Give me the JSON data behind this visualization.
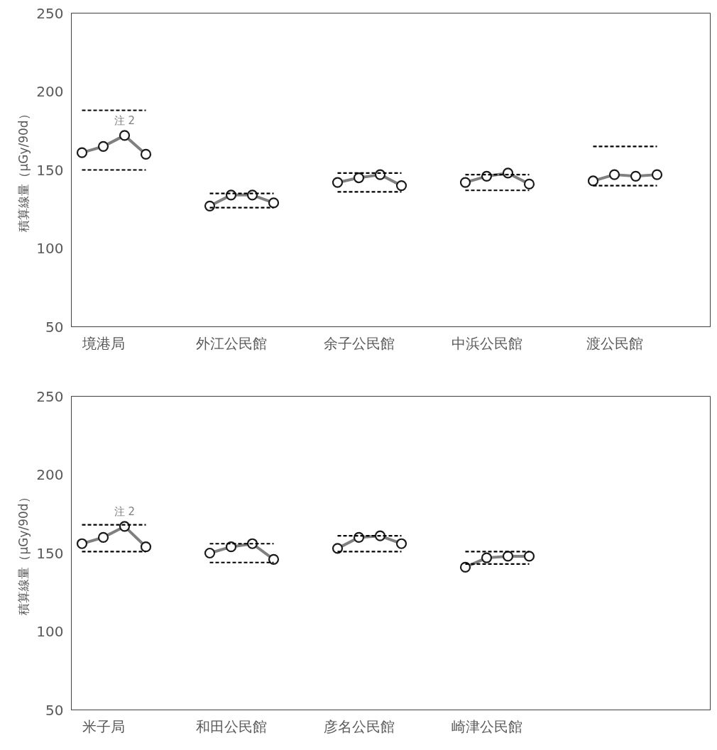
{
  "chart_data": [
    {
      "type": "line",
      "ylabel": "積算線量（μGy/90d）",
      "ylim": [
        50,
        250
      ],
      "yticks": [
        50,
        100,
        150,
        200,
        250
      ],
      "grid": false,
      "categories": [
        null,
        "境港局",
        null,
        null,
        null,
        null,
        null,
        "外江公民館",
        null,
        null,
        null,
        null,
        null,
        "余子公民館",
        null,
        null,
        null,
        null,
        null,
        "中浜公民館",
        null,
        null,
        null,
        null,
        null,
        "渡公民館",
        null,
        null,
        null,
        null
      ],
      "annotations": [
        "注 2"
      ],
      "series": [
        {
          "values": [
            161,
            165,
            172,
            160,
            null,
            null,
            127,
            134,
            134,
            129,
            null,
            null,
            142,
            145,
            147,
            140,
            null,
            null,
            142,
            146,
            148,
            141,
            null,
            null,
            143,
            147,
            146,
            147,
            null,
            null
          ],
          "color": "#808080",
          "marker": "circle",
          "line_style": "solid"
        },
        {
          "values": [
            188,
            188,
            188,
            188,
            null,
            null,
            135,
            135,
            135,
            135,
            null,
            null,
            148,
            148,
            148,
            148,
            null,
            null,
            147,
            147,
            147,
            147,
            null,
            null,
            165,
            165,
            165,
            165,
            null,
            null
          ],
          "color": "#000000",
          "marker": "none",
          "line_style": "dashed"
        },
        {
          "values": [
            150,
            150,
            150,
            150,
            null,
            null,
            126,
            126,
            126,
            126,
            null,
            null,
            136,
            136,
            136,
            136,
            null,
            null,
            137,
            137,
            137,
            137,
            null,
            null,
            140,
            140,
            140,
            140,
            null,
            null
          ],
          "color": "#000000",
          "marker": "none",
          "line_style": "dashed"
        }
      ]
    },
    {
      "type": "line",
      "ylabel": "積算線量（μGy/90d）",
      "ylim": [
        50,
        250
      ],
      "yticks": [
        50,
        100,
        150,
        200,
        250
      ],
      "grid": false,
      "categories": [
        null,
        "米子局",
        null,
        null,
        null,
        null,
        null,
        "和田公民館",
        null,
        null,
        null,
        null,
        null,
        "彦名公民館",
        null,
        null,
        null,
        null,
        null,
        "崎津公民館",
        null,
        null,
        null,
        null
      ],
      "annotations": [
        "注 2"
      ],
      "series": [
        {
          "values": [
            156,
            160,
            167,
            154,
            null,
            null,
            150,
            154,
            156,
            146,
            null,
            null,
            153,
            160,
            161,
            156,
            null,
            null,
            141,
            147,
            148,
            148,
            null,
            null
          ],
          "color": "#808080",
          "marker": "circle",
          "line_style": "solid"
        },
        {
          "values": [
            168,
            168,
            168,
            168,
            null,
            null,
            156,
            156,
            156,
            156,
            null,
            null,
            161,
            161,
            161,
            161,
            null,
            null,
            151,
            151,
            151,
            151,
            null,
            null
          ],
          "color": "#000000",
          "marker": "none",
          "line_style": "dashed"
        },
        {
          "values": [
            151,
            151,
            151,
            151,
            null,
            null,
            144,
            144,
            144,
            144,
            null,
            null,
            151,
            151,
            151,
            151,
            null,
            null,
            143,
            143,
            143,
            143,
            null,
            null
          ],
          "color": "#000000",
          "marker": "none",
          "line_style": "dashed"
        }
      ]
    }
  ]
}
